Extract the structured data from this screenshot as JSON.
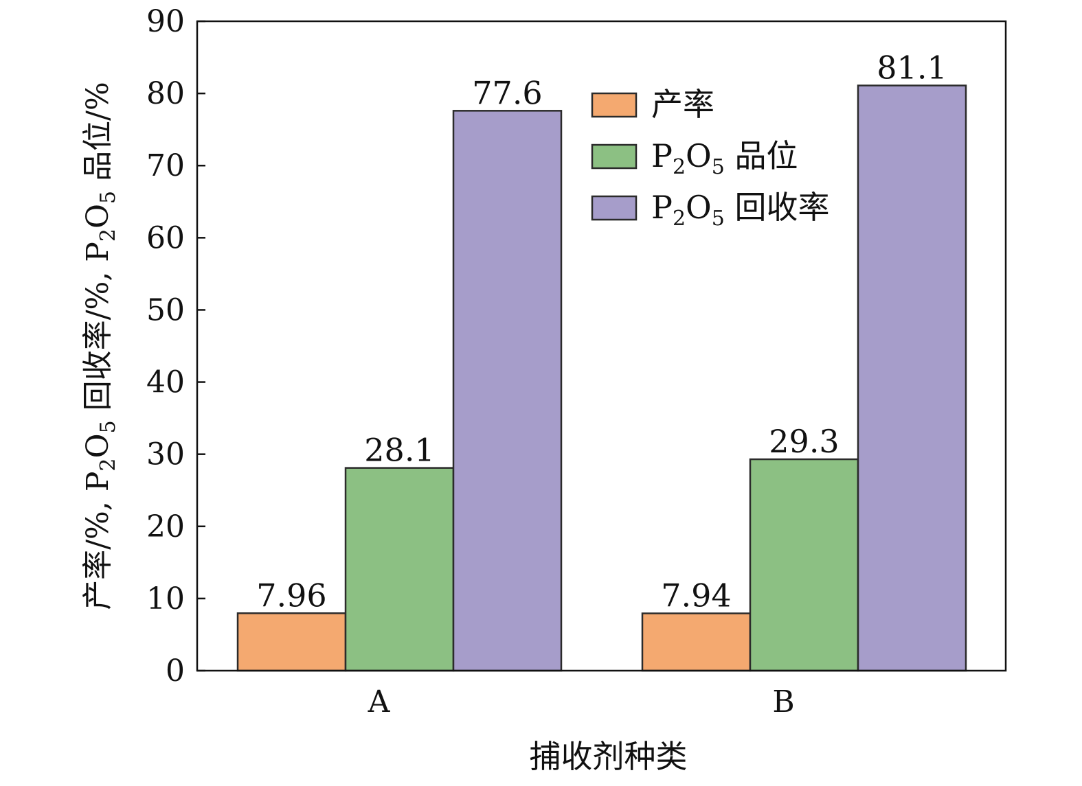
{
  "chart_data": {
    "type": "bar",
    "categories": [
      "A",
      "B"
    ],
    "series": [
      {
        "name": "产率",
        "values": [
          7.96,
          7.94
        ],
        "labels": [
          "7.96",
          "7.94"
        ],
        "color": "#f4a970"
      },
      {
        "name": "P2O5 品位",
        "name_base": "P",
        "name_sub1": "2",
        "name_mid": "O",
        "name_sub2": "5",
        "name_suffix": " 品位",
        "values": [
          28.1,
          29.3
        ],
        "labels": [
          "28.1",
          "29.3"
        ],
        "color": "#8cc083"
      },
      {
        "name": "P2O5 回收率",
        "name_base": "P",
        "name_sub1": "2",
        "name_mid": "O",
        "name_sub2": "5",
        "name_suffix": " 回收率",
        "values": [
          77.6,
          81.1
        ],
        "labels": [
          "77.6",
          "81.1"
        ],
        "color": "#a69dca"
      }
    ],
    "xlabel": "捕收剂种类",
    "ylabel": "产率/%, P2O5 回收率/%, P2O5 品位/%",
    "ylabel_parts": [
      "产率/%, P",
      "2",
      "O",
      "5",
      " 回收率/%, P",
      "2",
      "O",
      "5",
      " 品位/%"
    ],
    "ylim": [
      0,
      90
    ],
    "yticks": [
      0,
      10,
      20,
      30,
      40,
      50,
      60,
      70,
      80,
      90
    ],
    "grid": false,
    "legend_position": "top-center",
    "bar_edge_color": "#2b2b2b"
  }
}
